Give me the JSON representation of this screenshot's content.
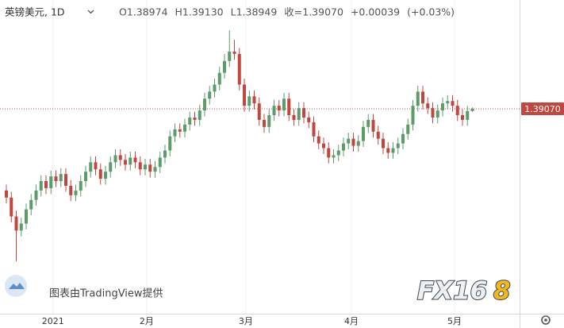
{
  "chart_data": {
    "type": "candlestick",
    "header": {
      "symbol": "英镑美元, 1D",
      "fields": [
        "O1.38974",
        "H1.39130",
        "L1.38949",
        "收=1.39070",
        "+0.00039",
        "(+0.03%)"
      ]
    },
    "attribution": "图表由TradingView提供",
    "logo": {
      "main": "FX16",
      "accent": "8"
    },
    "up_color": "#5b9c6a",
    "down_color": "#c0473f",
    "xlim": [
      -1.28,
      103.52
    ],
    "xticks": [
      {
        "value": 9.4,
        "label": "2021"
      },
      {
        "value": 28.3,
        "label": "2月"
      },
      {
        "value": 48.3,
        "label": "3月"
      },
      {
        "value": 69.6,
        "label": "4月"
      },
      {
        "value": 90.4,
        "label": "5月"
      }
    ],
    "ylim": [
      1.3037,
      1.4369
    ],
    "price_label": {
      "value": 1.3907,
      "label": "1.39070"
    },
    "open": [
      1.356,
      1.353,
      1.345,
      1.339,
      1.342,
      1.348,
      1.352,
      1.356,
      1.36,
      1.357,
      1.362,
      1.36,
      1.363,
      1.358,
      1.354,
      1.356,
      1.36,
      1.364,
      1.368,
      1.365,
      1.361,
      1.364,
      1.368,
      1.371,
      1.369,
      1.367,
      1.37,
      1.368,
      1.365,
      1.367,
      1.364,
      1.366,
      1.37,
      1.373,
      1.379,
      1.382,
      1.381,
      1.384,
      1.387,
      1.386,
      1.39,
      1.395,
      1.398,
      1.401,
      1.406,
      1.411,
      1.415,
      1.414,
      1.401,
      1.392,
      1.396,
      1.393,
      1.386,
      1.383,
      1.388,
      1.392,
      1.39,
      1.395,
      1.388,
      1.386,
      1.391,
      1.387,
      1.385,
      1.379,
      1.376,
      1.374,
      1.37,
      1.371,
      1.373,
      1.376,
      1.378,
      1.375,
      1.377,
      1.383,
      1.386,
      1.381,
      1.378,
      1.374,
      1.372,
      1.374,
      1.376,
      1.38,
      1.384,
      1.392,
      1.398,
      1.393,
      1.391,
      1.387,
      1.39,
      1.393,
      1.394,
      1.392,
      1.388,
      1.386,
      1.38974
    ],
    "high": [
      1.3585,
      1.3555,
      1.3475,
      1.3445,
      1.3505,
      1.3545,
      1.3585,
      1.3625,
      1.3625,
      1.3645,
      1.3645,
      1.3655,
      1.3655,
      1.3605,
      1.3585,
      1.3625,
      1.3665,
      1.3705,
      1.3705,
      1.3675,
      1.3665,
      1.3705,
      1.3735,
      1.3735,
      1.3715,
      1.3725,
      1.3725,
      1.3705,
      1.3695,
      1.3695,
      1.3685,
      1.3725,
      1.3755,
      1.3815,
      1.3845,
      1.3845,
      1.3865,
      1.3895,
      1.3895,
      1.3925,
      1.3975,
      1.4005,
      1.4035,
      1.4085,
      1.414,
      1.424,
      1.42,
      1.4165,
      1.4035,
      1.3985,
      1.3985,
      1.3955,
      1.3885,
      1.3905,
      1.3945,
      1.3945,
      1.3975,
      1.3975,
      1.3905,
      1.3935,
      1.3935,
      1.3895,
      1.3875,
      1.3815,
      1.3785,
      1.3765,
      1.3735,
      1.3755,
      1.3785,
      1.3805,
      1.3805,
      1.3795,
      1.3855,
      1.3885,
      1.3885,
      1.3835,
      1.3805,
      1.3765,
      1.3765,
      1.3785,
      1.3825,
      1.3865,
      1.3945,
      1.4005,
      1.4005,
      1.3955,
      1.3935,
      1.3925,
      1.3955,
      1.3965,
      1.3965,
      1.3945,
      1.3905,
      1.392,
      1.3913
    ],
    "low": [
      1.3505,
      1.3425,
      1.326,
      1.3365,
      1.3395,
      1.3455,
      1.3495,
      1.3535,
      1.3545,
      1.3545,
      1.3575,
      1.3575,
      1.3555,
      1.3515,
      1.3515,
      1.3535,
      1.3575,
      1.3615,
      1.3625,
      1.3585,
      1.3585,
      1.3615,
      1.3655,
      1.3665,
      1.3645,
      1.3645,
      1.3655,
      1.3625,
      1.3625,
      1.3615,
      1.3615,
      1.3635,
      1.3675,
      1.3705,
      1.3765,
      1.3785,
      1.3785,
      1.3815,
      1.3835,
      1.3835,
      1.3875,
      1.3925,
      1.3955,
      1.3985,
      1.4035,
      1.4085,
      1.4115,
      1.3985,
      1.3895,
      1.3895,
      1.3905,
      1.3835,
      1.3805,
      1.3805,
      1.3855,
      1.3875,
      1.3875,
      1.3855,
      1.3835,
      1.3835,
      1.3845,
      1.3825,
      1.3765,
      1.3735,
      1.3715,
      1.3675,
      1.3675,
      1.3685,
      1.3705,
      1.3735,
      1.3725,
      1.3725,
      1.3745,
      1.3805,
      1.3785,
      1.3755,
      1.3715,
      1.3695,
      1.3695,
      1.3715,
      1.3735,
      1.3775,
      1.3815,
      1.3895,
      1.3905,
      1.3885,
      1.3845,
      1.3845,
      1.3875,
      1.3905,
      1.3895,
      1.3855,
      1.3835,
      1.3835,
      1.38949
    ],
    "close": [
      1.353,
      1.345,
      1.339,
      1.342,
      1.348,
      1.352,
      1.356,
      1.36,
      1.357,
      1.362,
      1.36,
      1.363,
      1.358,
      1.354,
      1.356,
      1.36,
      1.364,
      1.368,
      1.365,
      1.361,
      1.364,
      1.368,
      1.371,
      1.369,
      1.367,
      1.37,
      1.368,
      1.365,
      1.367,
      1.364,
      1.366,
      1.37,
      1.373,
      1.379,
      1.382,
      1.381,
      1.384,
      1.387,
      1.386,
      1.39,
      1.395,
      1.398,
      1.401,
      1.406,
      1.411,
      1.415,
      1.414,
      1.401,
      1.392,
      1.396,
      1.393,
      1.386,
      1.383,
      1.388,
      1.392,
      1.39,
      1.395,
      1.388,
      1.386,
      1.391,
      1.387,
      1.385,
      1.379,
      1.376,
      1.374,
      1.37,
      1.371,
      1.373,
      1.376,
      1.378,
      1.375,
      1.377,
      1.383,
      1.386,
      1.381,
      1.378,
      1.374,
      1.372,
      1.374,
      1.376,
      1.38,
      1.384,
      1.392,
      1.398,
      1.393,
      1.391,
      1.387,
      1.39,
      1.393,
      1.394,
      1.392,
      1.388,
      1.386,
      1.38974,
      1.3907
    ]
  }
}
